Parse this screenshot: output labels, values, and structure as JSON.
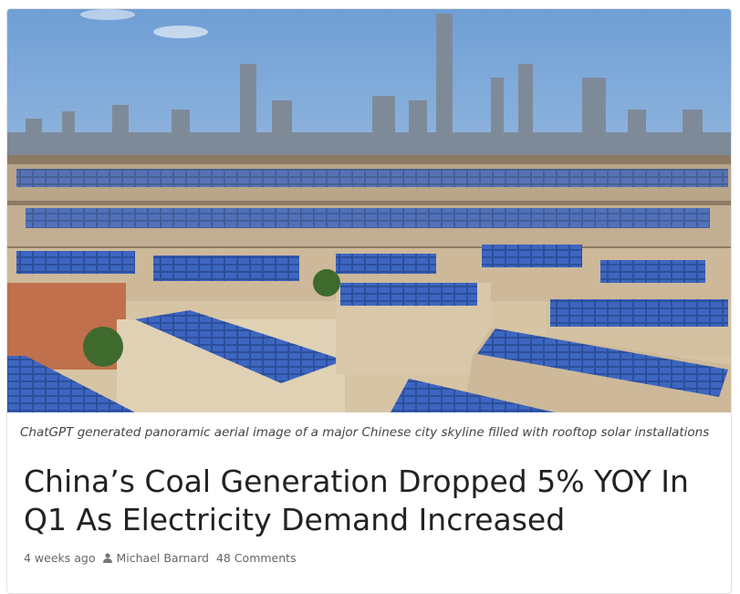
{
  "article": {
    "caption": "ChatGPT generated panoramic aerial image of a major Chinese city skyline filled with rooftop solar installations",
    "title": "China’s Coal Generation Dropped 5% YOY In Q1 As Electricity Demand Increased",
    "time": "4 weeks ago",
    "author": "Michael Barnard",
    "comments": "48 Comments"
  }
}
